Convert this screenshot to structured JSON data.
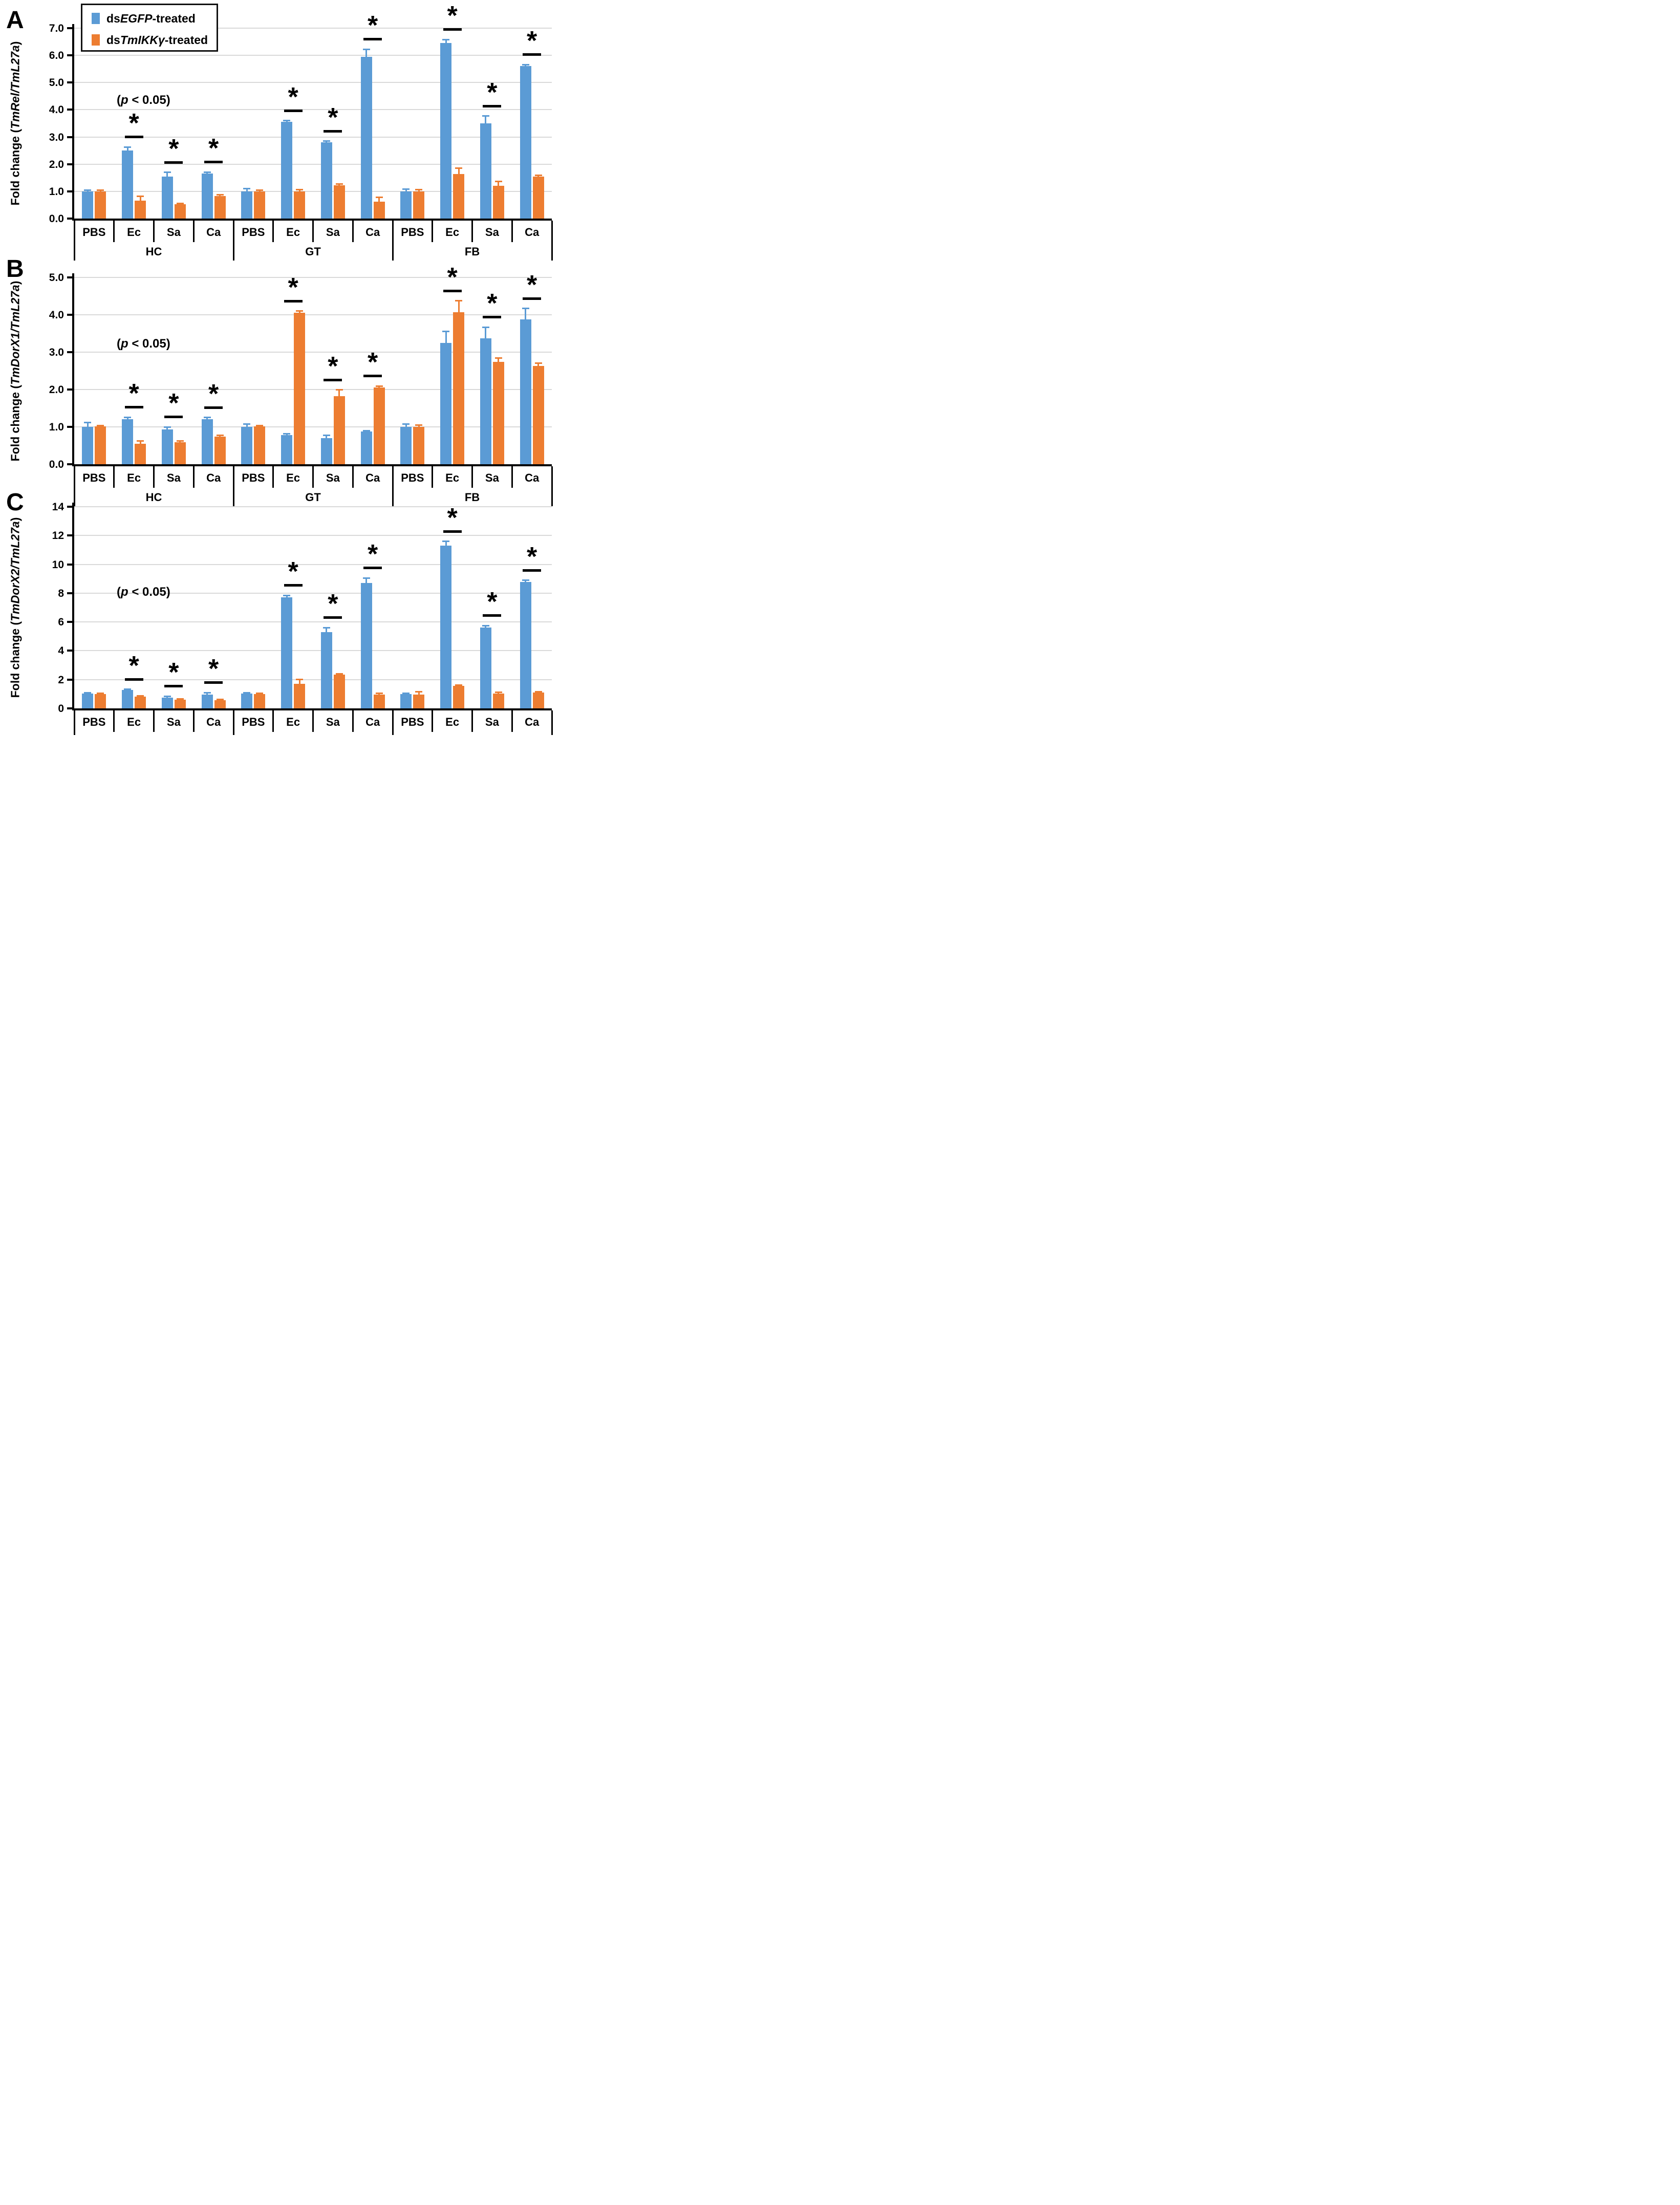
{
  "figure": {
    "sig_symbol": "*",
    "p_note": {
      "prefix": "(",
      "italic": "p",
      "suffix": " < 0.05)"
    },
    "legend": {
      "items": [
        {
          "prefix": "ds",
          "gene": "EGFP",
          "suffix": "-treated",
          "color": "#5B9BD5"
        },
        {
          "prefix": "ds",
          "gene": "TmIKKγ",
          "suffix": "-treated",
          "color": "#ED7D31"
        }
      ]
    },
    "colors": {
      "blue": "#5B9BD5",
      "orange": "#ED7D31",
      "gridline": "#D9D9D9",
      "axis": "#000000"
    }
  },
  "chart_data": [
    {
      "type": "bar",
      "panel_label": "A",
      "ylabel": {
        "prefix": "Fold change (",
        "gene": "TmRel/TmL27a",
        "suffix": ")"
      },
      "ylim": [
        0,
        7
      ],
      "yticks": [
        "0.0",
        "1.0",
        "2.0",
        "3.0",
        "4.0",
        "5.0",
        "6.0",
        "7.0"
      ],
      "grid": true,
      "legend_position": "top-left",
      "groups": [
        "HC",
        "GT",
        "FB"
      ],
      "treatments": [
        "PBS",
        "Ec",
        "Sa",
        "Ca"
      ],
      "series": [
        {
          "name": "dsEGFP-treated",
          "color": "#5B9BD5",
          "values": [
            [
              1.0,
              2.5,
              1.55,
              1.65
            ],
            [
              1.0,
              3.55,
              2.8,
              5.95
            ],
            [
              1.0,
              6.45,
              3.5,
              5.6
            ]
          ],
          "errors": [
            [
              0.05,
              0.13,
              0.15,
              0.06
            ],
            [
              0.1,
              0.05,
              0.05,
              0.27
            ],
            [
              0.08,
              0.13,
              0.27,
              0.06
            ]
          ]
        },
        {
          "name": "dsTmIKKγ-treated",
          "color": "#ED7D31",
          "values": [
            [
              1.0,
              0.65,
              0.53,
              0.83
            ],
            [
              1.0,
              1.0,
              1.22,
              0.63
            ],
            [
              1.0,
              1.63,
              1.2,
              1.55
            ]
          ],
          "errors": [
            [
              0.04,
              0.17,
              0.03,
              0.04
            ],
            [
              0.05,
              0.07,
              0.05,
              0.16
            ],
            [
              0.07,
              0.22,
              0.17,
              0.04
            ]
          ]
        }
      ],
      "significant": [
        [
          false,
          true,
          true,
          true
        ],
        [
          false,
          true,
          true,
          true
        ],
        [
          false,
          true,
          true,
          true
        ]
      ]
    },
    {
      "type": "bar",
      "panel_label": "B",
      "ylabel": {
        "prefix": "Fold change (",
        "gene": "TmDorX1/TmL27a",
        "suffix": ")"
      },
      "ylim": [
        0,
        5
      ],
      "yticks": [
        "0.0",
        "1.0",
        "2.0",
        "3.0",
        "4.0",
        "5.0"
      ],
      "grid": true,
      "groups": [
        "HC",
        "GT",
        "FB"
      ],
      "treatments": [
        "PBS",
        "Ec",
        "Sa",
        "Ca"
      ],
      "series": [
        {
          "name": "dsEGFP-treated",
          "color": "#5B9BD5",
          "values": [
            [
              1.0,
              1.2,
              0.93,
              1.2
            ],
            [
              1.0,
              0.78,
              0.7,
              0.87
            ],
            [
              1.0,
              3.25,
              3.37,
              3.87
            ]
          ],
          "errors": [
            [
              0.12,
              0.06,
              0.07,
              0.05
            ],
            [
              0.07,
              0.03,
              0.08,
              0.03
            ],
            [
              0.07,
              0.3,
              0.3,
              0.3
            ]
          ]
        },
        {
          "name": "dsTmIKKγ-treated",
          "color": "#ED7D31",
          "values": [
            [
              1.01,
              0.55,
              0.59,
              0.74
            ],
            [
              1.01,
              4.05,
              1.82,
              2.05
            ],
            [
              1.0,
              4.07,
              2.74,
              2.63
            ]
          ],
          "errors": [
            [
              0.03,
              0.07,
              0.04,
              0.04
            ],
            [
              0.03,
              0.05,
              0.17,
              0.04
            ],
            [
              0.05,
              0.3,
              0.1,
              0.08
            ]
          ]
        }
      ],
      "significant": [
        [
          false,
          true,
          true,
          true
        ],
        [
          false,
          true,
          true,
          true
        ],
        [
          false,
          true,
          true,
          true
        ]
      ]
    },
    {
      "type": "bar",
      "panel_label": "C",
      "ylabel": {
        "prefix": "Fold change (",
        "gene": "TmDorX2/TmL27a",
        "suffix": ")"
      },
      "ylim": [
        0,
        14
      ],
      "yticks": [
        "0",
        "2",
        "4",
        "6",
        "8",
        "10",
        "12",
        "14"
      ],
      "grid": true,
      "groups": [
        "HC",
        "GT",
        "FB"
      ],
      "treatments": [
        "PBS",
        "Ec",
        "Sa",
        "Ca"
      ],
      "series": [
        {
          "name": "dsEGFP-treated",
          "color": "#5B9BD5",
          "values": [
            [
              1.03,
              1.28,
              0.76,
              0.97
            ],
            [
              1.03,
              7.7,
              5.3,
              8.7
            ],
            [
              1.0,
              11.3,
              5.62,
              8.78
            ]
          ],
          "errors": [
            [
              0.05,
              0.05,
              0.08,
              0.13
            ],
            [
              0.05,
              0.15,
              0.3,
              0.35
            ],
            [
              0.06,
              0.3,
              0.12,
              0.12
            ]
          ]
        },
        {
          "name": "dsTmIKKγ-treated",
          "color": "#ED7D31",
          "values": [
            [
              1.0,
              0.82,
              0.6,
              0.58
            ],
            [
              1.0,
              1.72,
              2.35,
              0.95
            ],
            [
              0.97,
              1.57,
              1.03,
              1.1
            ]
          ],
          "errors": [
            [
              0.04,
              0.06,
              0.05,
              0.05
            ],
            [
              0.05,
              0.3,
              0.06,
              0.1
            ],
            [
              0.2,
              0.06,
              0.1,
              0.06
            ]
          ]
        }
      ],
      "significant": [
        [
          false,
          true,
          true,
          true
        ],
        [
          false,
          true,
          true,
          true
        ],
        [
          false,
          true,
          true,
          true
        ]
      ]
    }
  ]
}
